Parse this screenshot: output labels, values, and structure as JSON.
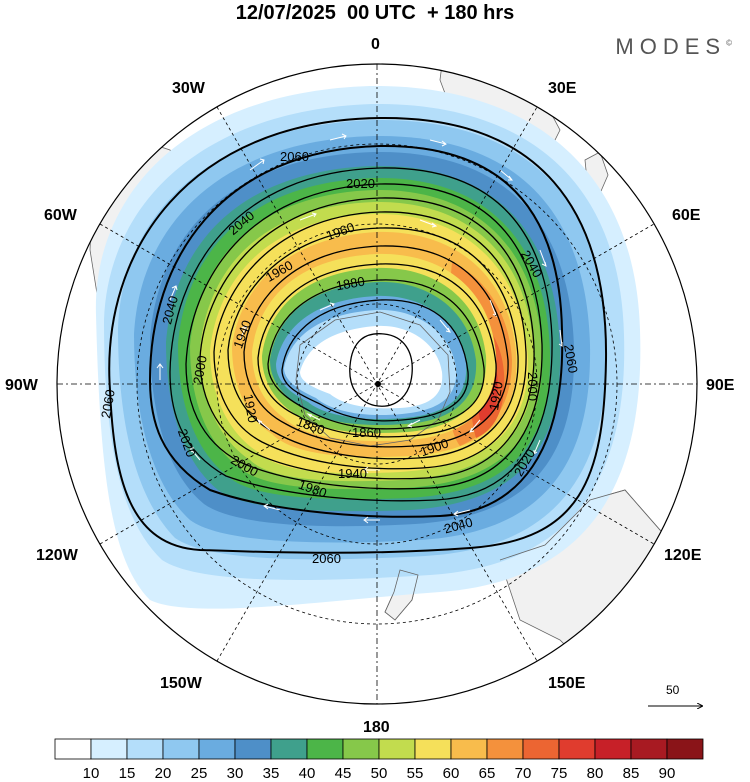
{
  "title": "12/07/2025  00 UTC  + 180 hrs",
  "logo": "MODES",
  "logo_mark": "©",
  "longitude_labels": {
    "n": "0",
    "e30": "30E",
    "e60": "60E",
    "e90": "90E",
    "e120": "120E",
    "e150": "150E",
    "s": "180",
    "w150": "150W",
    "w120": "120W",
    "w90": "90W",
    "w60": "60W",
    "w30": "30W"
  },
  "contour_labels": {
    "c2060a": "2060",
    "c2020a": "2020",
    "c2040a": "2040",
    "c1960a": "1960",
    "c1960b": "1960",
    "c2040b": "2040",
    "c1880a": "1880",
    "c2040c": "2040",
    "c1940a": "1940",
    "c2060b": "2060",
    "c2000a": "2000",
    "c1920a": "1920",
    "c2000b": "2000",
    "c1920b": "1920",
    "c1880b": "1880",
    "c1860": "1860",
    "c1900": "1900",
    "c2020b": "2020",
    "c1940b": "1940",
    "c2020c": "2020",
    "c2000c": "2000",
    "c1980": "1980",
    "c2040d": "2040",
    "c2060c": "2060",
    "c2060d": "2060"
  },
  "reference_vector_label": "50",
  "colorbar": {
    "ticks": [
      "10",
      "15",
      "20",
      "25",
      "30",
      "35",
      "40",
      "45",
      "50",
      "55",
      "60",
      "65",
      "70",
      "75",
      "80",
      "85",
      "90"
    ],
    "colors": [
      "#ffffff",
      "#d6efff",
      "#b4defa",
      "#8fc8f0",
      "#6aace0",
      "#4e8fc8",
      "#3fa08c",
      "#4cb548",
      "#86c84a",
      "#c2dc4e",
      "#f5e05a",
      "#f8bc4c",
      "#f4913c",
      "#ec6532",
      "#e03c2e",
      "#c72028",
      "#a81a22",
      "#8a1418"
    ]
  },
  "colors": {
    "land": "#f1f1f1",
    "coast": "#666666",
    "contour": "#000000",
    "grid": "#000000"
  }
}
